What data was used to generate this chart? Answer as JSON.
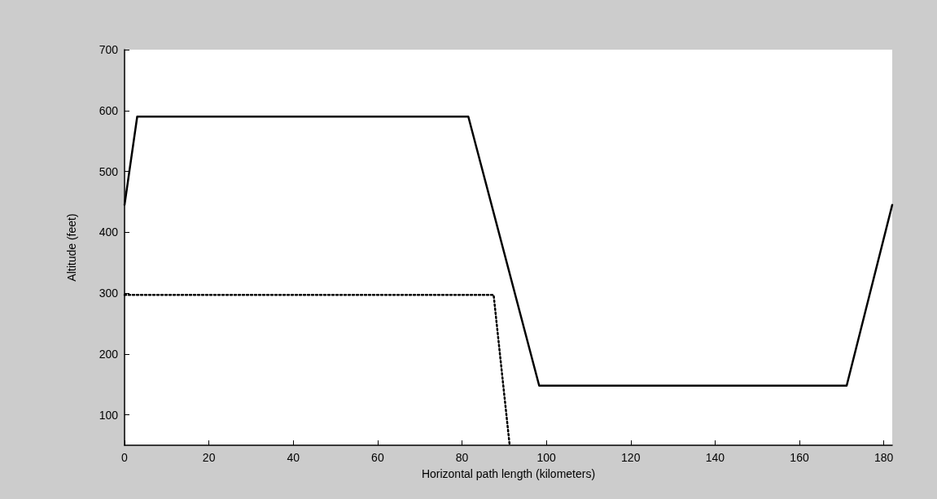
{
  "chart_data": {
    "type": "line",
    "xlabel": "Horizontal path length (kilometers)",
    "ylabel": "Altitude (feet)",
    "xlim": [
      0,
      182
    ],
    "xticks": [
      0,
      20,
      40,
      60,
      80,
      100,
      120,
      140,
      160,
      180
    ],
    "ylim": [
      50,
      700
    ],
    "yticks": [
      100,
      200,
      300,
      400,
      500,
      600,
      700
    ],
    "grid": false,
    "marker": "none",
    "series": [
      {
        "color": "#000000",
        "line_style": "solid",
        "x": [
          0,
          3,
          81.5,
          98.3,
          171.2,
          182
        ],
        "values": [
          445,
          590,
          590,
          148,
          148,
          445
        ]
      },
      {
        "color": "#000000",
        "line_style": "dotted",
        "x": [
          0,
          87.5,
          91.3
        ],
        "values": [
          297,
          297,
          50
        ]
      }
    ]
  }
}
